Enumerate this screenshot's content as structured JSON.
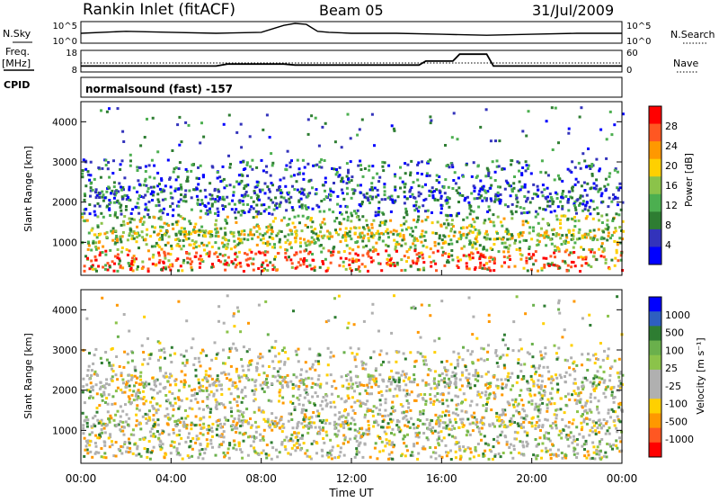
{
  "header": {
    "station": "Rankin Inlet (fitACF)",
    "beam": "Beam 05",
    "date": "31/Jul/2009"
  },
  "left_labels": {
    "nsky": "N.Sky",
    "freq": "Freq.",
    "mhz": "[MHz]",
    "cpid": "CPID"
  },
  "right_labels": {
    "nsearch": "N.Search",
    "nave": "Nave"
  },
  "cpid_text": "normalsound (fast) -157",
  "colors": {
    "power": [
      "#0000ff",
      "#3333bb",
      "#2e7d32",
      "#4caf50",
      "#8bc34a",
      "#ffd000",
      "#ff9800",
      "#ff5722",
      "#ff0000"
    ],
    "velocity_pos": [
      "#0000ff",
      "#2e5fc0",
      "#2e7d32",
      "#6ab04c",
      "#8bc34a"
    ],
    "velocity_gray": "#b0b0b0",
    "velocity_neg": [
      "#ffd000",
      "#ff9800",
      "#ff5722",
      "#ff0000"
    ]
  },
  "chart_data": [
    {
      "id": "noise",
      "type": "line",
      "left_ticks": [
        "10^5",
        "10^0"
      ],
      "right_ticks": [
        "10^5",
        "10^0"
      ],
      "series": [
        {
          "x": [
            0,
            2,
            4,
            6,
            8,
            9,
            9.5,
            10,
            10.5,
            11,
            12,
            14,
            16,
            18,
            20,
            22,
            24
          ],
          "y": [
            0.5,
            0.6,
            0.55,
            0.5,
            0.55,
            0.9,
            1,
            0.95,
            0.6,
            0.55,
            0.5,
            0.5,
            0.45,
            0.4,
            0.45,
            0.5,
            0.5
          ]
        }
      ]
    },
    {
      "id": "freq_nave",
      "type": "line",
      "left_ticks": [
        "18",
        "8"
      ],
      "right_ticks": [
        "60",
        "0"
      ],
      "series": [
        {
          "x": [
            0,
            6,
            6.5,
            9,
            9.5,
            15,
            15.3,
            16.5,
            16.8,
            18,
            18.3,
            24
          ],
          "y": [
            0.3,
            0.3,
            0.4,
            0.4,
            0.35,
            0.35,
            0.55,
            0.55,
            0.9,
            0.9,
            0.3,
            0.3
          ]
        }
      ]
    },
    {
      "id": "power",
      "type": "heatmap",
      "ylabel": "Slant Range [km]",
      "x_range_hours": [
        0,
        24
      ],
      "yticks": [
        "4000",
        "3000",
        "2000",
        "1000"
      ],
      "ylim": [
        180,
        4500
      ],
      "colorbar_label": "Power [dB]",
      "colorbar_ticks": [
        "28",
        "24",
        "20",
        "16",
        "12",
        "8",
        "4"
      ]
    },
    {
      "id": "velocity",
      "type": "heatmap",
      "ylabel": "Slant Range [km]",
      "xlabel": "Time UT",
      "x_range_hours": [
        0,
        24
      ],
      "xticks": [
        "00:00",
        "04:00",
        "08:00",
        "12:00",
        "16:00",
        "20:00",
        "00:00"
      ],
      "yticks": [
        "4000",
        "3000",
        "2000",
        "1000"
      ],
      "ylim": [
        180,
        4500
      ],
      "colorbar_label": "Velocity [m s⁻¹]",
      "colorbar_ticks": [
        "1000",
        "500",
        "100",
        "25",
        "-25",
        "-100",
        "-500",
        "-1000"
      ]
    }
  ]
}
